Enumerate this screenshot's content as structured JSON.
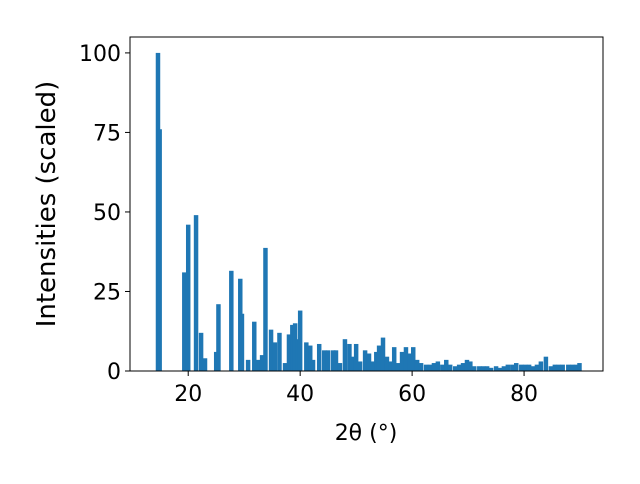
{
  "chart_data": {
    "type": "bar",
    "xlabel": "2θ (°)",
    "ylabel": "Intensities (scaled)",
    "color": "#1f77b4",
    "grid": false,
    "xlim": [
      9.6,
      94.1
    ],
    "ylim": [
      0,
      105
    ],
    "xticks": [
      20,
      40,
      60,
      80
    ],
    "yticks": [
      0,
      25,
      50,
      75,
      100
    ],
    "x": [
      14.6,
      14.9,
      19.3,
      20.0,
      21.4,
      22.3,
      23.0,
      25.0,
      25.4,
      27.7,
      29.3,
      29.6,
      30.7,
      31.8,
      32.5,
      33.2,
      33.8,
      34.8,
      35.5,
      36.3,
      37.3,
      38.0,
      38.6,
      39.1,
      39.6,
      40.0,
      41.1,
      41.8,
      42.3,
      43.4,
      44.3,
      45.0,
      45.9,
      46.4,
      47.1,
      48.0,
      48.8,
      49.3,
      50.0,
      50.7,
      51.6,
      52.3,
      52.9,
      53.6,
      54.1,
      54.8,
      55.5,
      56.1,
      56.8,
      57.5,
      58.2,
      58.9,
      59.5,
      60.2,
      60.9,
      61.6,
      62.5,
      63.2,
      63.9,
      64.6,
      65.4,
      66.1,
      66.8,
      67.7,
      68.4,
      69.1,
      69.8,
      70.4,
      71.1,
      72.0,
      72.7,
      73.4,
      74.1,
      75.0,
      75.7,
      76.4,
      77.1,
      77.9,
      78.6,
      79.5,
      80.2,
      80.9,
      81.6,
      82.3,
      83.0,
      83.9,
      84.8,
      85.5,
      86.2,
      86.9,
      87.9,
      88.6,
      89.3,
      89.9
    ],
    "values": [
      100,
      76,
      31,
      46,
      49,
      12,
      4,
      6,
      21,
      31.5,
      29,
      18,
      3.5,
      15.5,
      3.5,
      5,
      38.7,
      13,
      9,
      12,
      2.5,
      11.5,
      14.5,
      15,
      10,
      19,
      9,
      8,
      3.5,
      8.5,
      6.5,
      6.5,
      6.5,
      6.5,
      2.5,
      10,
      8.5,
      4.5,
      8.5,
      3,
      6.5,
      5.5,
      3,
      6,
      8,
      10.5,
      4.5,
      3,
      7.5,
      2.5,
      6,
      7.5,
      5.5,
      7.5,
      3.5,
      2.5,
      2,
      2,
      2.5,
      3,
      2,
      3.5,
      2,
      1.5,
      2,
      2.5,
      3.5,
      3,
      1.5,
      1.5,
      1.5,
      1.5,
      1,
      1.5,
      1,
      1.5,
      2,
      2,
      2.5,
      2,
      2,
      2,
      1.5,
      2,
      3,
      4.5,
      1.5,
      2,
      2,
      2,
      2,
      2,
      2,
      2.5
    ]
  }
}
